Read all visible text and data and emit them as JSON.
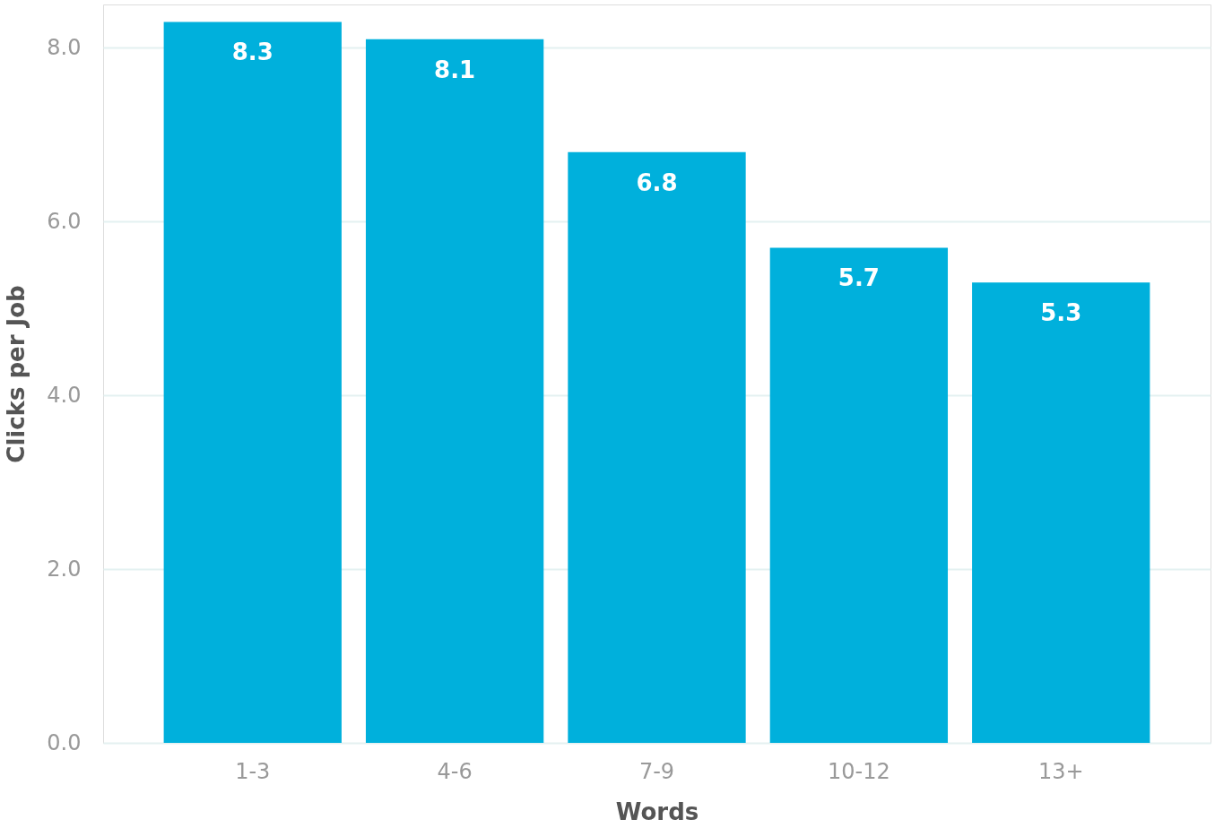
{
  "chart_data": {
    "type": "bar",
    "xlabel": "Words",
    "ylabel": "Clicks per Job",
    "categories": [
      "1-3",
      "4-6",
      "7-9",
      "10-12",
      "13+"
    ],
    "values": [
      8.3,
      8.1,
      6.8,
      5.7,
      5.3
    ],
    "color": "#00b0dc",
    "ylim": [
      0,
      8.5
    ],
    "yticks": [
      {
        "value": 0,
        "label": "0.0"
      },
      {
        "value": 2,
        "label": "2.0"
      },
      {
        "value": 4,
        "label": "4.0"
      },
      {
        "value": 6,
        "label": "6.0"
      },
      {
        "value": 8,
        "label": "8.0"
      }
    ],
    "grid": "y",
    "data_labels": true
  }
}
